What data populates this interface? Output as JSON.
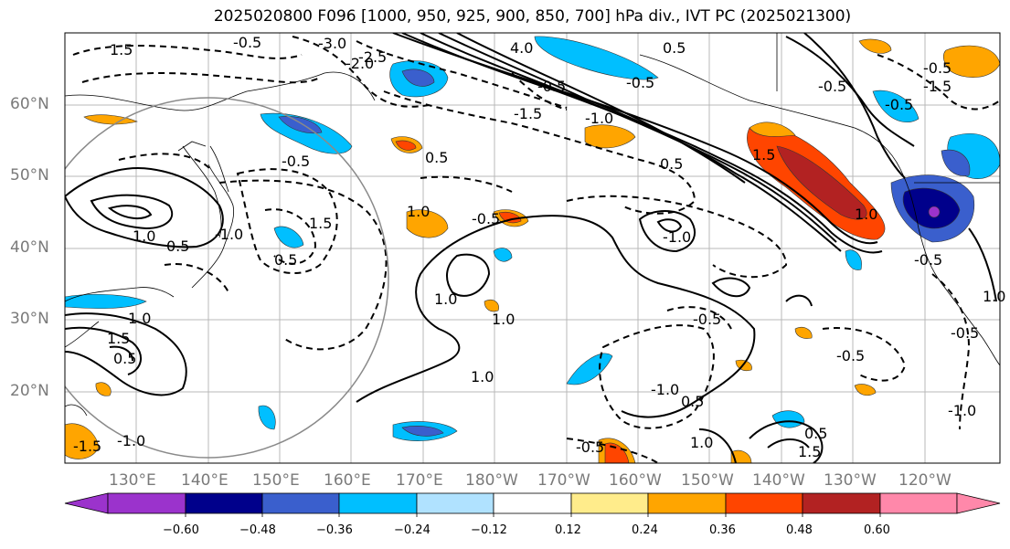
{
  "title": "2025020800 F096 [1000, 950, 925, 900, 850, 700] hPa div., IVT PC (2025021300)",
  "lat_labels": [
    "60°N",
    "50°N",
    "40°N",
    "30°N",
    "20°N"
  ],
  "lon_labels": [
    "130°E",
    "140°E",
    "150°E",
    "160°E",
    "170°E",
    "180°W",
    "170°W",
    "160°W",
    "150°W",
    "140°W",
    "130°W",
    "120°W"
  ],
  "colorbar": {
    "tick_labels": [
      "−0.60",
      "−0.48",
      "−0.36",
      "−0.24",
      "−0.12",
      "0.12",
      "0.24",
      "0.36",
      "0.48",
      "0.60"
    ],
    "colors": [
      "#9b33cc",
      "#00008b",
      "#3a5fcd",
      "#00bfff",
      "#b0e2ff",
      "#ffffff",
      "#ffec8b",
      "#ffa500",
      "#ff4500",
      "#b22222",
      "#ff88aa"
    ]
  },
  "contour_labels": [
    "-3.0",
    "4.0",
    "-2.0",
    "-1.5",
    "0.5",
    "-0.5",
    "1.5",
    "-1.0",
    "0.5",
    "-1.5",
    "0.5",
    "1.0",
    "-0.5",
    "0.5",
    "1.0",
    "-1.0",
    "-0.5",
    "-0.5",
    "1.5",
    "1.0",
    "-0.5",
    "1.5",
    "0.5",
    "-0.5",
    "1.0",
    "1.0",
    "1.5",
    "-0.5",
    "-0.5",
    "1.0",
    "-1.0",
    "-1.5",
    "-1.0",
    "1.0",
    "1.0",
    "-1.0",
    "-0.5",
    "0.5",
    "-0.5",
    "-0.5",
    "1.0",
    "-0.5",
    "0.5",
    "1.5",
    "-1.0",
    "0.5",
    "-0.5",
    "-2.5"
  ]
}
